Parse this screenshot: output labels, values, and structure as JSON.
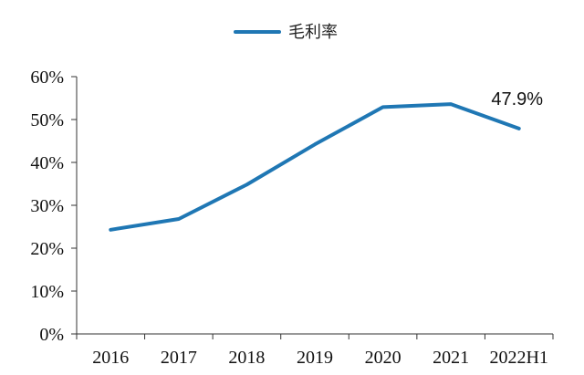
{
  "chart_data": {
    "type": "line",
    "categories": [
      "2016",
      "2017",
      "2018",
      "2019",
      "2020",
      "2021",
      "2022H1"
    ],
    "series": [
      {
        "name": "毛利率",
        "values": [
          24.3,
          26.8,
          34.8,
          44.2,
          52.9,
          53.6,
          47.9
        ],
        "color": "#1f77b4"
      }
    ],
    "ylim": [
      0,
      60
    ],
    "yticks": [
      "0%",
      "10%",
      "20%",
      "30%",
      "40%",
      "50%",
      "60%"
    ],
    "annotations": [
      {
        "category": "2022H1",
        "text": "47.9%"
      }
    ],
    "grid": false,
    "legend_position": "top-center"
  }
}
